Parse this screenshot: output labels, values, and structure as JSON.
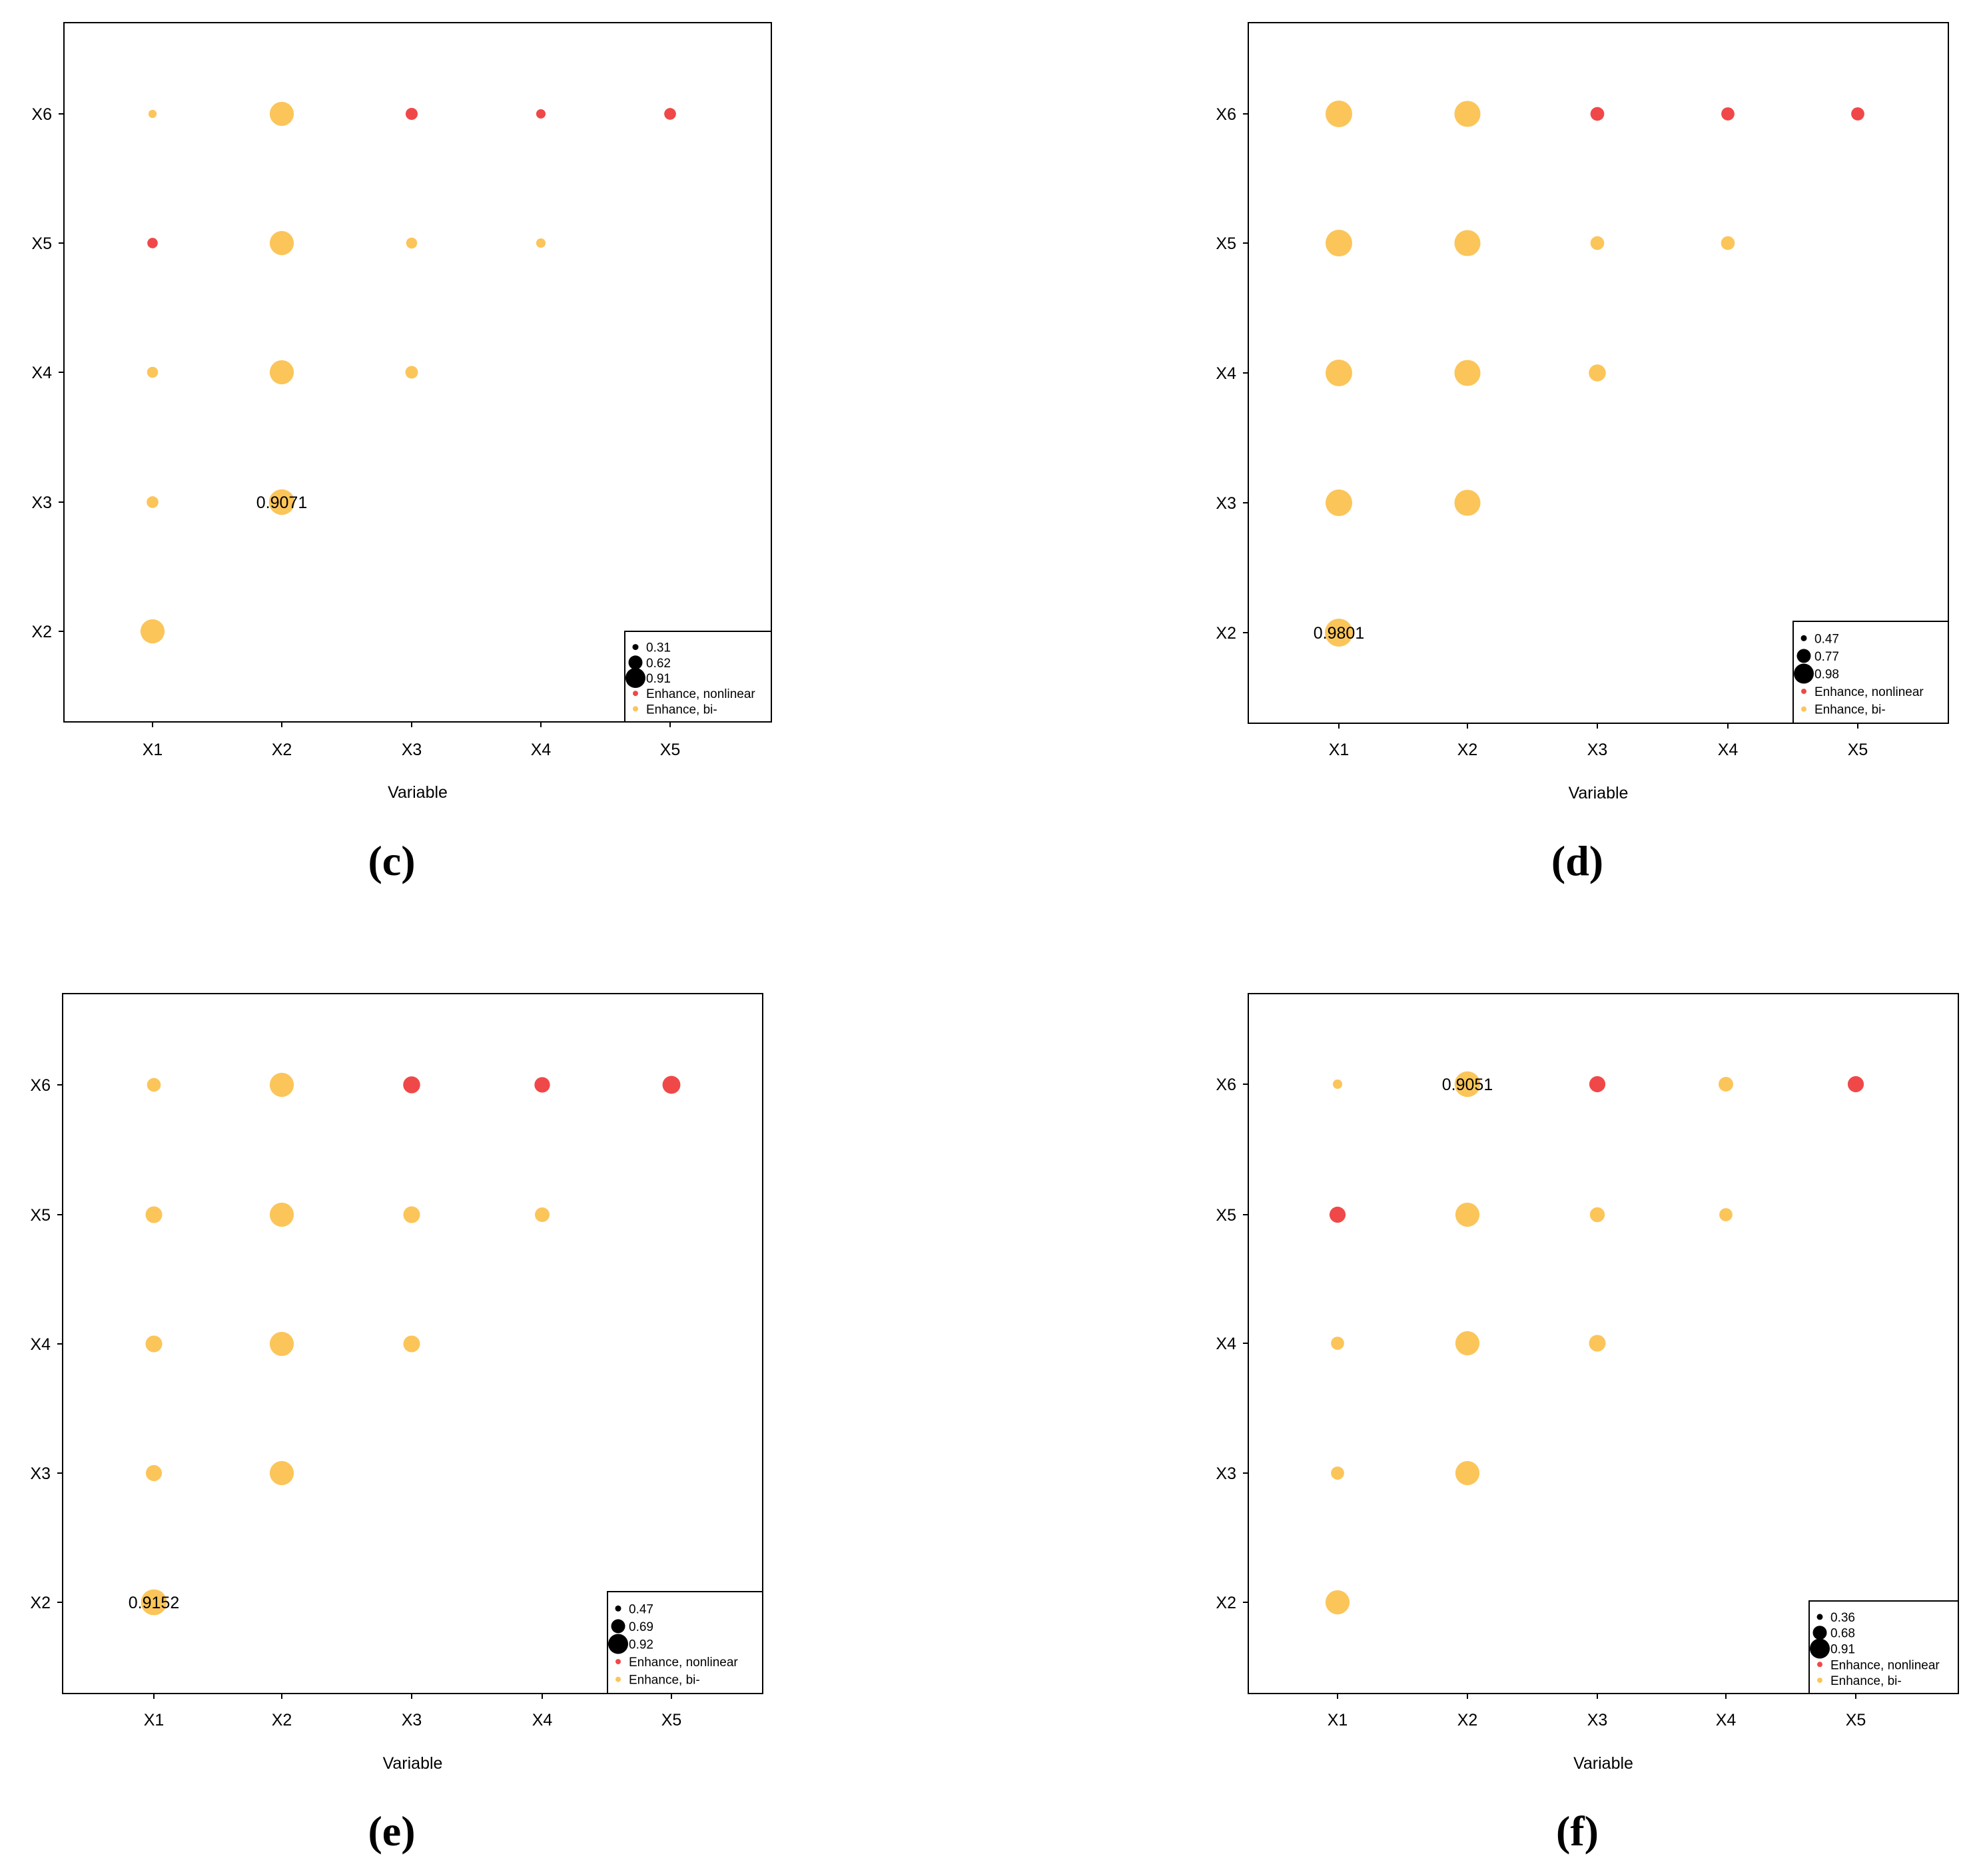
{
  "figure": {
    "panels": [
      "(c)",
      "(d)",
      "(e)",
      "(f)"
    ]
  },
  "chart_data": [
    {
      "panel_label": "(c)",
      "type": "scatter",
      "xlabel": "Variable",
      "ylabel": "",
      "x_categories": [
        "X1",
        "X2",
        "X3",
        "X4",
        "X5"
      ],
      "y_categories": [
        "X2",
        "X3",
        "X4",
        "X5",
        "X6"
      ],
      "colors": {
        "Enhance, nonlinear": "#f04848",
        "Enhance, bi-": "#fbc55a"
      },
      "points": [
        {
          "x": "X1",
          "y": "X2",
          "value": 0.86,
          "type": "Enhance, bi-"
        },
        {
          "x": "X1",
          "y": "X3",
          "value": 0.45,
          "type": "Enhance, bi-"
        },
        {
          "x": "X2",
          "y": "X3",
          "value": 0.9071,
          "type": "Enhance, bi-",
          "label": "0.9071"
        },
        {
          "x": "X1",
          "y": "X4",
          "value": 0.42,
          "type": "Enhance, bi-"
        },
        {
          "x": "X2",
          "y": "X4",
          "value": 0.86,
          "type": "Enhance, bi-"
        },
        {
          "x": "X3",
          "y": "X4",
          "value": 0.48,
          "type": "Enhance, bi-"
        },
        {
          "x": "X1",
          "y": "X5",
          "value": 0.4,
          "type": "Enhance, nonlinear"
        },
        {
          "x": "X2",
          "y": "X5",
          "value": 0.86,
          "type": "Enhance, bi-"
        },
        {
          "x": "X3",
          "y": "X5",
          "value": 0.42,
          "type": "Enhance, bi-"
        },
        {
          "x": "X4",
          "y": "X5",
          "value": 0.36,
          "type": "Enhance, bi-"
        },
        {
          "x": "X1",
          "y": "X6",
          "value": 0.31,
          "type": "Enhance, bi-"
        },
        {
          "x": "X2",
          "y": "X6",
          "value": 0.86,
          "type": "Enhance, bi-"
        },
        {
          "x": "X3",
          "y": "X6",
          "value": 0.46,
          "type": "Enhance, nonlinear"
        },
        {
          "x": "X4",
          "y": "X6",
          "value": 0.36,
          "type": "Enhance, nonlinear"
        },
        {
          "x": "X5",
          "y": "X6",
          "value": 0.45,
          "type": "Enhance, nonlinear"
        }
      ],
      "legend": {
        "position": "bottom-right",
        "sizes": [
          "0.31",
          "0.62",
          "0.91"
        ],
        "types": [
          "Enhance, nonlinear",
          "Enhance, bi-"
        ]
      }
    },
    {
      "panel_label": "(d)",
      "type": "scatter",
      "xlabel": "Variable",
      "ylabel": "",
      "x_categories": [
        "X1",
        "X2",
        "X3",
        "X4",
        "X5"
      ],
      "y_categories": [
        "X2",
        "X3",
        "X4",
        "X5",
        "X6"
      ],
      "colors": {
        "Enhance, nonlinear": "#f04848",
        "Enhance, bi-": "#fbc55a"
      },
      "points": [
        {
          "x": "X1",
          "y": "X2",
          "value": 0.9801,
          "type": "Enhance, bi-",
          "label": "0.9801"
        },
        {
          "x": "X1",
          "y": "X3",
          "value": 0.94,
          "type": "Enhance, bi-"
        },
        {
          "x": "X2",
          "y": "X3",
          "value": 0.92,
          "type": "Enhance, bi-"
        },
        {
          "x": "X1",
          "y": "X4",
          "value": 0.94,
          "type": "Enhance, bi-"
        },
        {
          "x": "X2",
          "y": "X4",
          "value": 0.92,
          "type": "Enhance, bi-"
        },
        {
          "x": "X3",
          "y": "X4",
          "value": 0.63,
          "type": "Enhance, bi-"
        },
        {
          "x": "X1",
          "y": "X5",
          "value": 0.94,
          "type": "Enhance, bi-"
        },
        {
          "x": "X2",
          "y": "X5",
          "value": 0.92,
          "type": "Enhance, bi-"
        },
        {
          "x": "X3",
          "y": "X5",
          "value": 0.52,
          "type": "Enhance, bi-"
        },
        {
          "x": "X4",
          "y": "X5",
          "value": 0.52,
          "type": "Enhance, bi-"
        },
        {
          "x": "X1",
          "y": "X6",
          "value": 0.94,
          "type": "Enhance, bi-"
        },
        {
          "x": "X2",
          "y": "X6",
          "value": 0.92,
          "type": "Enhance, bi-"
        },
        {
          "x": "X3",
          "y": "X6",
          "value": 0.52,
          "type": "Enhance, nonlinear"
        },
        {
          "x": "X4",
          "y": "X6",
          "value": 0.5,
          "type": "Enhance, nonlinear"
        },
        {
          "x": "X5",
          "y": "X6",
          "value": 0.5,
          "type": "Enhance, nonlinear"
        }
      ],
      "legend": {
        "position": "bottom-right",
        "sizes": [
          "0.47",
          "0.77",
          "0.98"
        ],
        "types": [
          "Enhance, nonlinear",
          "Enhance, bi-"
        ]
      }
    },
    {
      "panel_label": "(e)",
      "type": "scatter",
      "xlabel": "Variable",
      "ylabel": "",
      "x_categories": [
        "X1",
        "X2",
        "X3",
        "X4",
        "X5"
      ],
      "y_categories": [
        "X2",
        "X3",
        "X4",
        "X5",
        "X6"
      ],
      "colors": {
        "Enhance, nonlinear": "#f04848",
        "Enhance, bi-": "#fbc55a"
      },
      "points": [
        {
          "x": "X1",
          "y": "X2",
          "value": 0.9152,
          "type": "Enhance, bi-",
          "label": "0.9152"
        },
        {
          "x": "X1",
          "y": "X3",
          "value": 0.6,
          "type": "Enhance, bi-"
        },
        {
          "x": "X2",
          "y": "X3",
          "value": 0.86,
          "type": "Enhance, bi-"
        },
        {
          "x": "X1",
          "y": "X4",
          "value": 0.62,
          "type": "Enhance, bi-"
        },
        {
          "x": "X2",
          "y": "X4",
          "value": 0.86,
          "type": "Enhance, bi-"
        },
        {
          "x": "X3",
          "y": "X4",
          "value": 0.62,
          "type": "Enhance, bi-"
        },
        {
          "x": "X1",
          "y": "X5",
          "value": 0.62,
          "type": "Enhance, bi-"
        },
        {
          "x": "X2",
          "y": "X5",
          "value": 0.86,
          "type": "Enhance, bi-"
        },
        {
          "x": "X3",
          "y": "X5",
          "value": 0.62,
          "type": "Enhance, bi-"
        },
        {
          "x": "X4",
          "y": "X5",
          "value": 0.55,
          "type": "Enhance, bi-"
        },
        {
          "x": "X1",
          "y": "X6",
          "value": 0.52,
          "type": "Enhance, bi-"
        },
        {
          "x": "X2",
          "y": "X6",
          "value": 0.86,
          "type": "Enhance, bi-"
        },
        {
          "x": "X3",
          "y": "X6",
          "value": 0.63,
          "type": "Enhance, nonlinear"
        },
        {
          "x": "X4",
          "y": "X6",
          "value": 0.58,
          "type": "Enhance, nonlinear"
        },
        {
          "x": "X5",
          "y": "X6",
          "value": 0.66,
          "type": "Enhance, nonlinear"
        }
      ],
      "legend": {
        "position": "bottom-right",
        "sizes": [
          "0.47",
          "0.69",
          "0.92"
        ],
        "types": [
          "Enhance, nonlinear",
          "Enhance, bi-"
        ]
      }
    },
    {
      "panel_label": "(f)",
      "type": "scatter",
      "xlabel": "Variable",
      "ylabel": "",
      "x_categories": [
        "X1",
        "X2",
        "X3",
        "X4",
        "X5"
      ],
      "y_categories": [
        "X2",
        "X3",
        "X4",
        "X5",
        "X6"
      ],
      "colors": {
        "Enhance, nonlinear": "#f04848",
        "Enhance, bi-": "#fbc55a"
      },
      "points": [
        {
          "x": "X1",
          "y": "X2",
          "value": 0.86,
          "type": "Enhance, bi-"
        },
        {
          "x": "X1",
          "y": "X3",
          "value": 0.5,
          "type": "Enhance, bi-"
        },
        {
          "x": "X2",
          "y": "X3",
          "value": 0.86,
          "type": "Enhance, bi-"
        },
        {
          "x": "X1",
          "y": "X4",
          "value": 0.5,
          "type": "Enhance, bi-"
        },
        {
          "x": "X2",
          "y": "X4",
          "value": 0.86,
          "type": "Enhance, bi-"
        },
        {
          "x": "X3",
          "y": "X4",
          "value": 0.62,
          "type": "Enhance, bi-"
        },
        {
          "x": "X1",
          "y": "X5",
          "value": 0.6,
          "type": "Enhance, nonlinear"
        },
        {
          "x": "X2",
          "y": "X5",
          "value": 0.86,
          "type": "Enhance, bi-"
        },
        {
          "x": "X3",
          "y": "X5",
          "value": 0.56,
          "type": "Enhance, bi-"
        },
        {
          "x": "X4",
          "y": "X5",
          "value": 0.5,
          "type": "Enhance, bi-"
        },
        {
          "x": "X1",
          "y": "X6",
          "value": 0.36,
          "type": "Enhance, bi-"
        },
        {
          "x": "X2",
          "y": "X6",
          "value": 0.9051,
          "type": "Enhance, bi-",
          "label": "0.9051"
        },
        {
          "x": "X3",
          "y": "X6",
          "value": 0.6,
          "type": "Enhance, nonlinear"
        },
        {
          "x": "X4",
          "y": "X6",
          "value": 0.55,
          "type": "Enhance, bi-"
        },
        {
          "x": "X5",
          "y": "X6",
          "value": 0.6,
          "type": "Enhance, nonlinear"
        }
      ],
      "legend": {
        "position": "bottom-right",
        "sizes": [
          "0.36",
          "0.68",
          "0.91"
        ],
        "types": [
          "Enhance, nonlinear",
          "Enhance, bi-"
        ]
      }
    }
  ]
}
